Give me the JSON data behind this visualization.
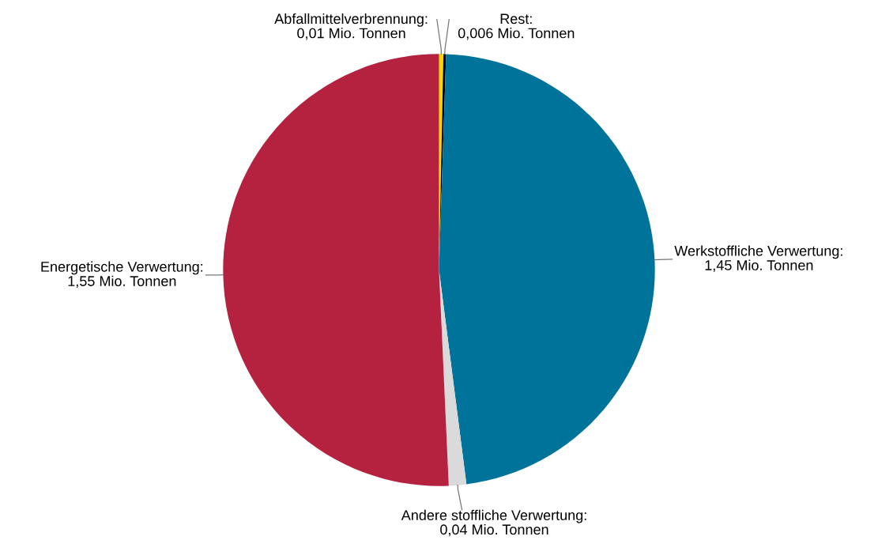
{
  "chart_data": {
    "type": "pie",
    "categories": [
      "Abfallmittelverbrennung:\n0,01 Mio. Tonnen",
      "Rest:\n0,006 Mio. Tonnen",
      "Werkstoffliche Verwertung:\n1,45 Mio. Tonnen",
      "Andere stoffliche Verwertung:\n0,04 Mio. Tonnen",
      "Energetische Verwertung:\n1,55 Mio. Tonnen"
    ],
    "values": [
      0.01,
      0.006,
      1.45,
      0.04,
      1.55
    ],
    "colors": [
      "#ffd400",
      "#000000",
      "#00739a",
      "#d9dad9",
      "#b52240"
    ]
  }
}
